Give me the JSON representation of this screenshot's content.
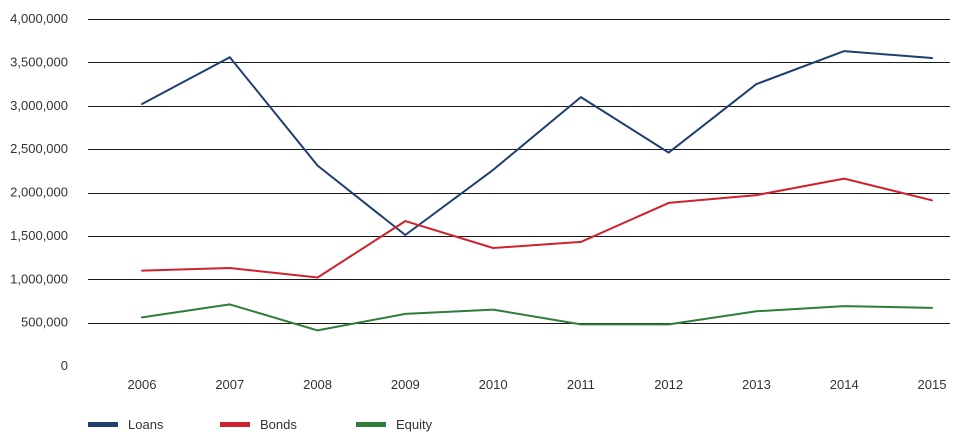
{
  "chart_data": {
    "type": "line",
    "title": "",
    "xlabel": "",
    "ylabel": "",
    "x": [
      "2006",
      "2007",
      "2008",
      "2009",
      "2010",
      "2011",
      "2012",
      "2013",
      "2014",
      "2015"
    ],
    "ylim": [
      0,
      4000000
    ],
    "y_ticks": [
      0,
      500000,
      1000000,
      1500000,
      2000000,
      2500000,
      3000000,
      3500000,
      4000000
    ],
    "y_tick_labels": [
      "0",
      "500,000",
      "1,000,000",
      "1,500,000",
      "2,000,000",
      "2,500,000",
      "3,000,000",
      "3,500,000",
      "4,000,000"
    ],
    "grid": "horizontal",
    "legend_position": "bottom-left",
    "series": [
      {
        "name": "Loans",
        "color": "#1f3f6e",
        "values": [
          3020000,
          3560000,
          2310000,
          1510000,
          2260000,
          3100000,
          2460000,
          3250000,
          3630000,
          3550000
        ]
      },
      {
        "name": "Bonds",
        "color": "#d0222e",
        "values": [
          1100000,
          1130000,
          1020000,
          1670000,
          1360000,
          1430000,
          1880000,
          1970000,
          2160000,
          1910000
        ]
      },
      {
        "name": "Equity",
        "color": "#2e7d3a",
        "values": [
          560000,
          710000,
          410000,
          600000,
          650000,
          480000,
          480000,
          630000,
          690000,
          670000
        ]
      }
    ]
  }
}
